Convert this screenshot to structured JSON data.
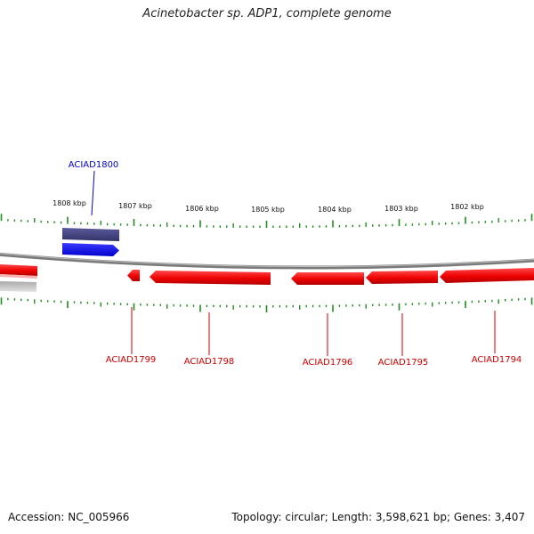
{
  "title": "Acinetobacter sp. ADP1, complete genome",
  "footer": {
    "accession": "Accession: NC_005966",
    "summary": "Topology: circular; Length: 3,598,621 bp; Genes: 3,407"
  },
  "colors": {
    "forward_gene": "#0000ee",
    "forward_gene_dark": "#3f3f7f",
    "reverse_gene": "#ee0000",
    "reverse_gene_shadow": "#f4a0a0",
    "backbone": "#888888",
    "tick": "#228b22",
    "label_forward": "#0000cc",
    "label_reverse": "#cc0000"
  },
  "scale_labels": [
    "1808 kbp",
    "1807 kbp",
    "1806 kbp",
    "1805 kbp",
    "1804 kbp",
    "1803 kbp",
    "1802 kbp"
  ],
  "genes": {
    "forward": [
      {
        "label": "ACIAD1800"
      }
    ],
    "reverse": [
      {
        "label": "ACIAD1799"
      },
      {
        "label": "ACIAD1798"
      },
      {
        "label": "ACIAD1796"
      },
      {
        "label": "ACIAD1795"
      },
      {
        "label": "ACIAD1794"
      }
    ]
  }
}
